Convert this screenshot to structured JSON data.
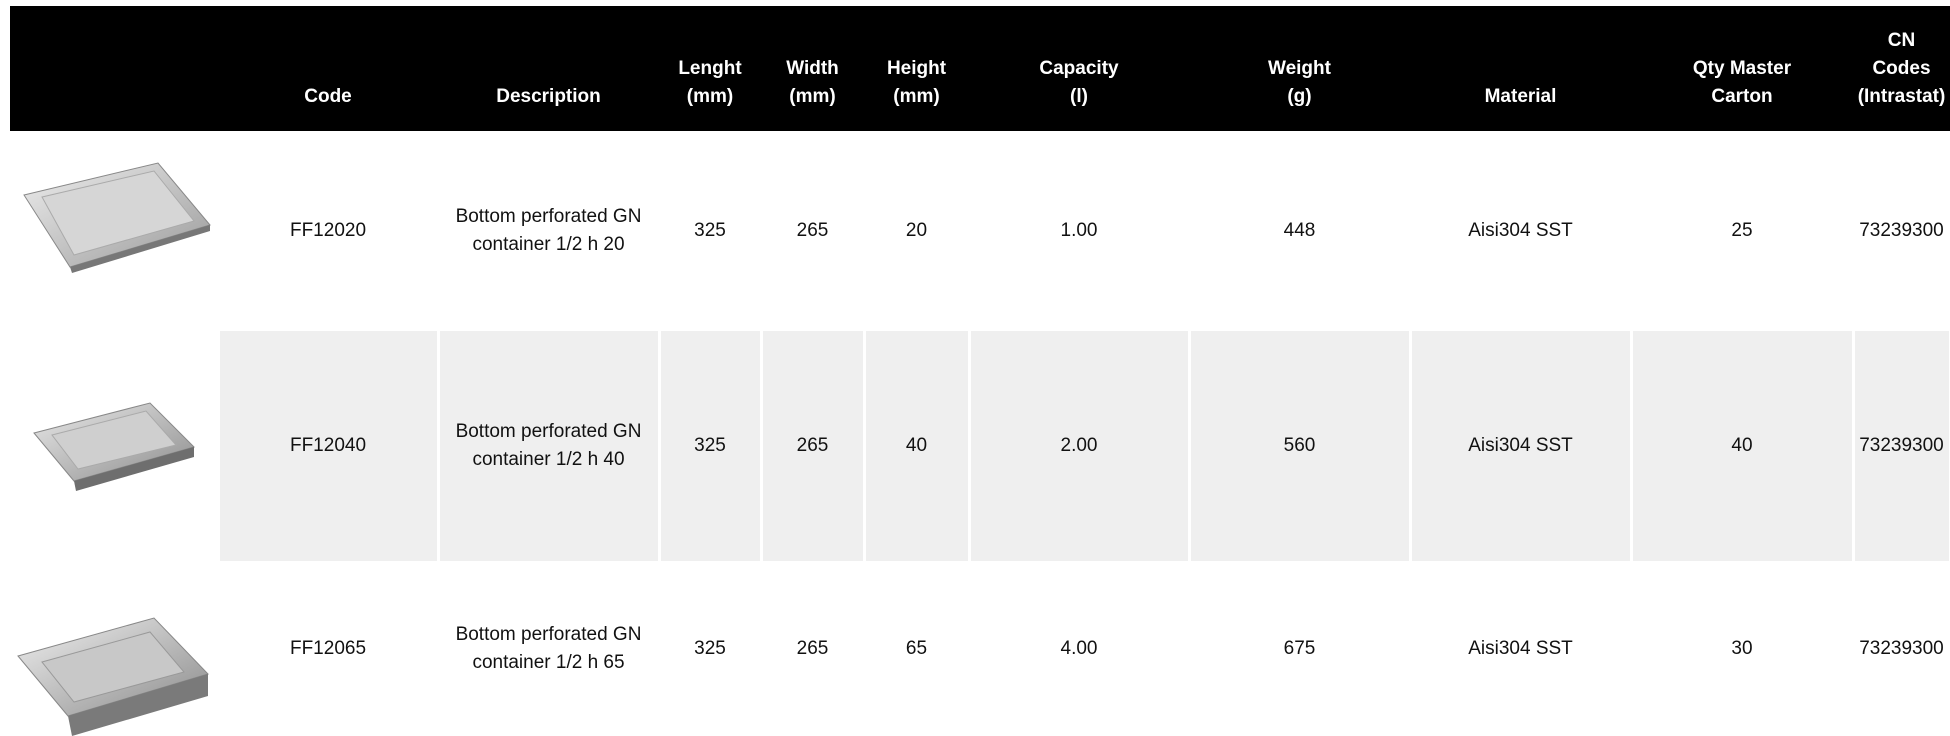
{
  "table": {
    "header": [
      [
        "Code"
      ],
      [
        "Description"
      ],
      [
        "Lenght",
        "(mm)"
      ],
      [
        "Width",
        "(mm)"
      ],
      [
        "Height",
        "(mm)"
      ],
      [
        "Capacity",
        "(l)"
      ],
      [
        "Weight",
        "(g)"
      ],
      [
        "Material"
      ],
      [
        "Qty Master",
        "Carton"
      ],
      [
        "CN",
        "Codes",
        "(Intrastat)"
      ]
    ],
    "rows": [
      [
        "FF12020",
        [
          "Bottom perforated GN",
          "container 1/2 h 20"
        ],
        "325",
        "265",
        "20",
        "1.00",
        "448",
        "Aisi304 SST",
        "25",
        "73239300"
      ],
      [
        "FF12040",
        [
          "Bottom perforated GN",
          "container 1/2 h 40"
        ],
        "325",
        "265",
        "40",
        "2.00",
        "560",
        "Aisi304 SST",
        "40",
        "73239300"
      ],
      [
        "FF12065",
        [
          "Bottom perforated GN",
          "container 1/2 h 65"
        ],
        "325",
        "265",
        "65",
        "4.00",
        "675",
        "Aisi304 SST",
        "30",
        "73239300"
      ]
    ]
  }
}
